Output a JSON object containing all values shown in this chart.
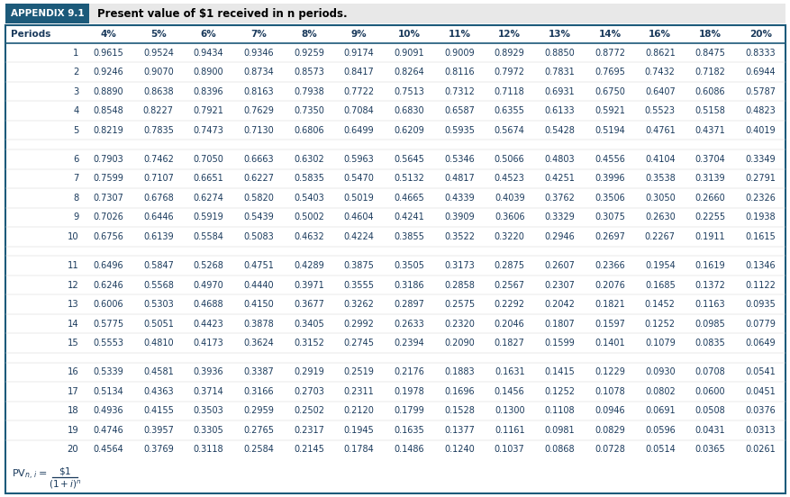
{
  "title_box_color": "#1c5a7a",
  "title_box_text": "APPENDIX 9.1",
  "title_text": "Present value of $1 received in n periods.",
  "border_color": "#1c5a7a",
  "col_headers": [
    "Periods",
    "4%",
    "5%",
    "6%",
    "7%",
    "8%",
    "9%",
    "10%",
    "11%",
    "12%",
    "13%",
    "14%",
    "16%",
    "18%",
    "20%"
  ],
  "rows": [
    [
      1,
      0.9615,
      0.9524,
      0.9434,
      0.9346,
      0.9259,
      0.9174,
      0.9091,
      0.9009,
      0.8929,
      0.885,
      0.8772,
      0.8621,
      0.8475,
      0.8333
    ],
    [
      2,
      0.9246,
      0.907,
      0.89,
      0.8734,
      0.8573,
      0.8417,
      0.8264,
      0.8116,
      0.7972,
      0.7831,
      0.7695,
      0.7432,
      0.7182,
      0.6944
    ],
    [
      3,
      0.889,
      0.8638,
      0.8396,
      0.8163,
      0.7938,
      0.7722,
      0.7513,
      0.7312,
      0.7118,
      0.6931,
      0.675,
      0.6407,
      0.6086,
      0.5787
    ],
    [
      4,
      0.8548,
      0.8227,
      0.7921,
      0.7629,
      0.735,
      0.7084,
      0.683,
      0.6587,
      0.6355,
      0.6133,
      0.5921,
      0.5523,
      0.5158,
      0.4823
    ],
    [
      5,
      0.8219,
      0.7835,
      0.7473,
      0.713,
      0.6806,
      0.6499,
      0.6209,
      0.5935,
      0.5674,
      0.5428,
      0.5194,
      0.4761,
      0.4371,
      0.4019
    ],
    [
      6,
      0.7903,
      0.7462,
      0.705,
      0.6663,
      0.6302,
      0.5963,
      0.5645,
      0.5346,
      0.5066,
      0.4803,
      0.4556,
      0.4104,
      0.3704,
      0.3349
    ],
    [
      7,
      0.7599,
      0.7107,
      0.6651,
      0.6227,
      0.5835,
      0.547,
      0.5132,
      0.4817,
      0.4523,
      0.4251,
      0.3996,
      0.3538,
      0.3139,
      0.2791
    ],
    [
      8,
      0.7307,
      0.6768,
      0.6274,
      0.582,
      0.5403,
      0.5019,
      0.4665,
      0.4339,
      0.4039,
      0.3762,
      0.3506,
      0.305,
      0.266,
      0.2326
    ],
    [
      9,
      0.7026,
      0.6446,
      0.5919,
      0.5439,
      0.5002,
      0.4604,
      0.4241,
      0.3909,
      0.3606,
      0.3329,
      0.3075,
      0.263,
      0.2255,
      0.1938
    ],
    [
      10,
      0.6756,
      0.6139,
      0.5584,
      0.5083,
      0.4632,
      0.4224,
      0.3855,
      0.3522,
      0.322,
      0.2946,
      0.2697,
      0.2267,
      0.1911,
      0.1615
    ],
    [
      11,
      0.6496,
      0.5847,
      0.5268,
      0.4751,
      0.4289,
      0.3875,
      0.3505,
      0.3173,
      0.2875,
      0.2607,
      0.2366,
      0.1954,
      0.1619,
      0.1346
    ],
    [
      12,
      0.6246,
      0.5568,
      0.497,
      0.444,
      0.3971,
      0.3555,
      0.3186,
      0.2858,
      0.2567,
      0.2307,
      0.2076,
      0.1685,
      0.1372,
      0.1122
    ],
    [
      13,
      0.6006,
      0.5303,
      0.4688,
      0.415,
      0.3677,
      0.3262,
      0.2897,
      0.2575,
      0.2292,
      0.2042,
      0.1821,
      0.1452,
      0.1163,
      0.0935
    ],
    [
      14,
      0.5775,
      0.5051,
      0.4423,
      0.3878,
      0.3405,
      0.2992,
      0.2633,
      0.232,
      0.2046,
      0.1807,
      0.1597,
      0.1252,
      0.0985,
      0.0779
    ],
    [
      15,
      0.5553,
      0.481,
      0.4173,
      0.3624,
      0.3152,
      0.2745,
      0.2394,
      0.209,
      0.1827,
      0.1599,
      0.1401,
      0.1079,
      0.0835,
      0.0649
    ],
    [
      16,
      0.5339,
      0.4581,
      0.3936,
      0.3387,
      0.2919,
      0.2519,
      0.2176,
      0.1883,
      0.1631,
      0.1415,
      0.1229,
      0.093,
      0.0708,
      0.0541
    ],
    [
      17,
      0.5134,
      0.4363,
      0.3714,
      0.3166,
      0.2703,
      0.2311,
      0.1978,
      0.1696,
      0.1456,
      0.1252,
      0.1078,
      0.0802,
      0.06,
      0.0451
    ],
    [
      18,
      0.4936,
      0.4155,
      0.3503,
      0.2959,
      0.2502,
      0.212,
      0.1799,
      0.1528,
      0.13,
      0.1108,
      0.0946,
      0.0691,
      0.0508,
      0.0376
    ],
    [
      19,
      0.4746,
      0.3957,
      0.3305,
      0.2765,
      0.2317,
      0.1945,
      0.1635,
      0.1377,
      0.1161,
      0.0981,
      0.0829,
      0.0596,
      0.0431,
      0.0313
    ],
    [
      20,
      0.4564,
      0.3769,
      0.3118,
      0.2584,
      0.2145,
      0.1784,
      0.1486,
      0.124,
      0.1037,
      0.0868,
      0.0728,
      0.0514,
      0.0365,
      0.0261
    ]
  ],
  "group_breaks": [
    5,
    10,
    15
  ],
  "bg_color": "#ffffff",
  "row_text_color": "#1a3a5c",
  "header_text_color": "#1a3a5c"
}
